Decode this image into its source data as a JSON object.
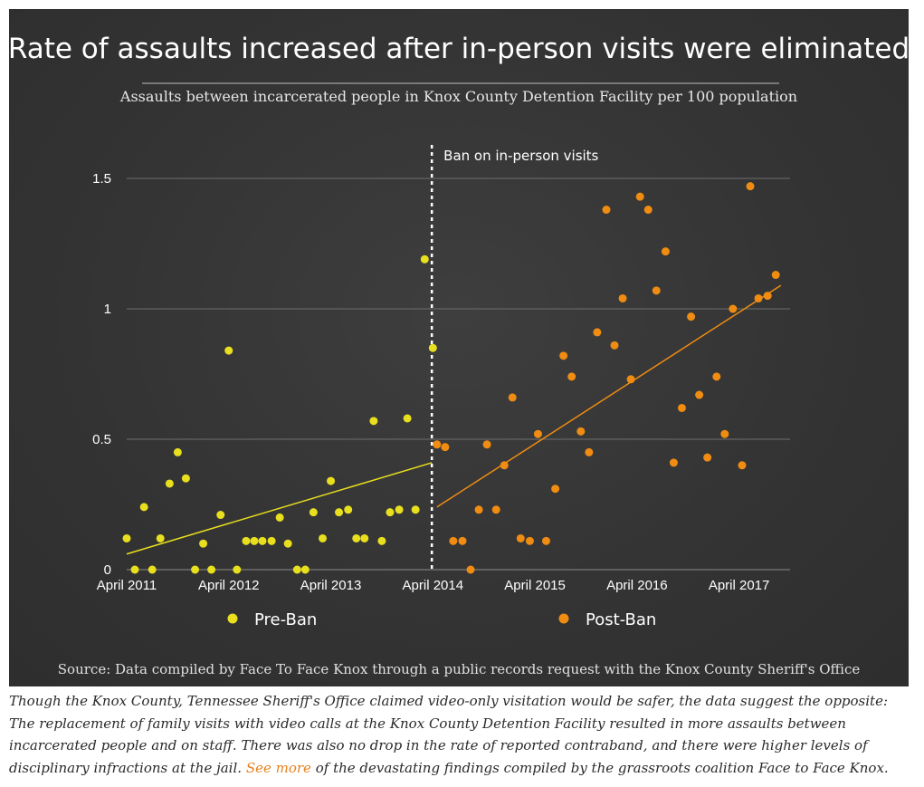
{
  "chart_data": {
    "type": "scatter",
    "title": "Rate of assaults increased after in-person visits were eliminated",
    "subtitle": "Assaults between incarcerated people in Knox County Detention Facility per 100 population",
    "xlabel": "",
    "ylabel": "",
    "xlim": [
      2011.0,
      2017.5
    ],
    "ylim": [
      0,
      1.5
    ],
    "x_ticks": [
      {
        "value": 2011.0,
        "label": "April 2011"
      },
      {
        "value": 2012.0,
        "label": "April 2012"
      },
      {
        "value": 2013.0,
        "label": "April 2013"
      },
      {
        "value": 2014.0,
        "label": "April 2014"
      },
      {
        "value": 2015.0,
        "label": "April 2015"
      },
      {
        "value": 2016.0,
        "label": "April 2016"
      },
      {
        "value": 2017.0,
        "label": "April 2017"
      }
    ],
    "y_ticks": [
      {
        "value": 0,
        "label": "0"
      },
      {
        "value": 0.5,
        "label": "0.5"
      },
      {
        "value": 1,
        "label": "1"
      },
      {
        "value": 1.5,
        "label": "1.5"
      }
    ],
    "grid": true,
    "legend_position": "bottom",
    "annotation": {
      "x": 2013.99,
      "label": "Ban on in-person visits"
    },
    "series": [
      {
        "name": "Pre-Ban",
        "color": "#e8df1e",
        "trend": [
          [
            2011.0,
            0.06
          ],
          [
            2013.99,
            0.41
          ]
        ],
        "points": [
          [
            2011.0,
            0.12
          ],
          [
            2011.08,
            0.0
          ],
          [
            2011.17,
            0.24
          ],
          [
            2011.25,
            0.0
          ],
          [
            2011.33,
            0.12
          ],
          [
            2011.42,
            0.33
          ],
          [
            2011.5,
            0.45
          ],
          [
            2011.58,
            0.35
          ],
          [
            2011.67,
            0.0
          ],
          [
            2011.75,
            0.1
          ],
          [
            2011.83,
            0.0
          ],
          [
            2011.92,
            0.21
          ],
          [
            2012.0,
            0.84
          ],
          [
            2012.08,
            0.0
          ],
          [
            2012.17,
            0.11
          ],
          [
            2012.25,
            0.11
          ],
          [
            2012.33,
            0.11
          ],
          [
            2012.42,
            0.11
          ],
          [
            2012.5,
            0.2
          ],
          [
            2012.58,
            0.1
          ],
          [
            2012.67,
            0.0
          ],
          [
            2012.75,
            0.0
          ],
          [
            2012.83,
            0.22
          ],
          [
            2012.92,
            0.12
          ],
          [
            2013.0,
            0.34
          ],
          [
            2013.08,
            0.22
          ],
          [
            2013.17,
            0.23
          ],
          [
            2013.25,
            0.12
          ],
          [
            2013.33,
            0.12
          ],
          [
            2013.42,
            0.57
          ],
          [
            2013.5,
            0.11
          ],
          [
            2013.58,
            0.22
          ],
          [
            2013.67,
            0.23
          ],
          [
            2013.75,
            0.58
          ],
          [
            2013.83,
            0.23
          ],
          [
            2013.92,
            1.19
          ],
          [
            2014.0,
            0.85
          ]
        ]
      },
      {
        "name": "Post-Ban",
        "color": "#f08c12",
        "trend": [
          [
            2014.04,
            0.24
          ],
          [
            2017.41,
            1.09
          ]
        ],
        "points": [
          [
            2014.04,
            0.48
          ],
          [
            2014.12,
            0.47
          ],
          [
            2014.2,
            0.11
          ],
          [
            2014.29,
            0.11
          ],
          [
            2014.37,
            0.0
          ],
          [
            2014.45,
            0.23
          ],
          [
            2014.53,
            0.48
          ],
          [
            2014.62,
            0.23
          ],
          [
            2014.7,
            0.4
          ],
          [
            2014.78,
            0.66
          ],
          [
            2014.86,
            0.12
          ],
          [
            2014.95,
            0.11
          ],
          [
            2015.03,
            0.52
          ],
          [
            2015.11,
            0.11
          ],
          [
            2015.2,
            0.31
          ],
          [
            2015.28,
            0.82
          ],
          [
            2015.36,
            0.74
          ],
          [
            2015.45,
            0.53
          ],
          [
            2015.53,
            0.45
          ],
          [
            2015.61,
            0.91
          ],
          [
            2015.7,
            1.38
          ],
          [
            2015.78,
            0.86
          ],
          [
            2015.86,
            1.04
          ],
          [
            2015.94,
            0.73
          ],
          [
            2016.03,
            1.43
          ],
          [
            2016.11,
            1.38
          ],
          [
            2016.19,
            1.07
          ],
          [
            2016.28,
            1.22
          ],
          [
            2016.36,
            0.41
          ],
          [
            2016.44,
            0.62
          ],
          [
            2016.53,
            0.97
          ],
          [
            2016.61,
            0.67
          ],
          [
            2016.69,
            0.43
          ],
          [
            2016.78,
            0.74
          ],
          [
            2016.86,
            0.52
          ],
          [
            2016.94,
            1.0
          ],
          [
            2017.03,
            0.4
          ],
          [
            2017.11,
            1.47
          ],
          [
            2017.19,
            1.04
          ],
          [
            2017.28,
            1.05
          ],
          [
            2017.36,
            1.13
          ]
        ]
      }
    ]
  },
  "source": "Source: Data compiled by Face To Face Knox through a public records request with the Knox County Sheriff's Office",
  "caption": {
    "text": "Though the Knox County, Tennessee Sheriff's Office claimed video-only visitation would be safer, the data suggest the opposite: The replacement of family visits with video calls at the Knox County Detention Facility resulted in more assaults between incarcerated people and on staff. There was also no drop in the rate of reported contraband, and there were higher levels of disciplinary infractions at the jail.",
    "link_text": "See more",
    "tail": "of the devastating findings compiled by the grassroots coalition Face to Face Knox."
  }
}
